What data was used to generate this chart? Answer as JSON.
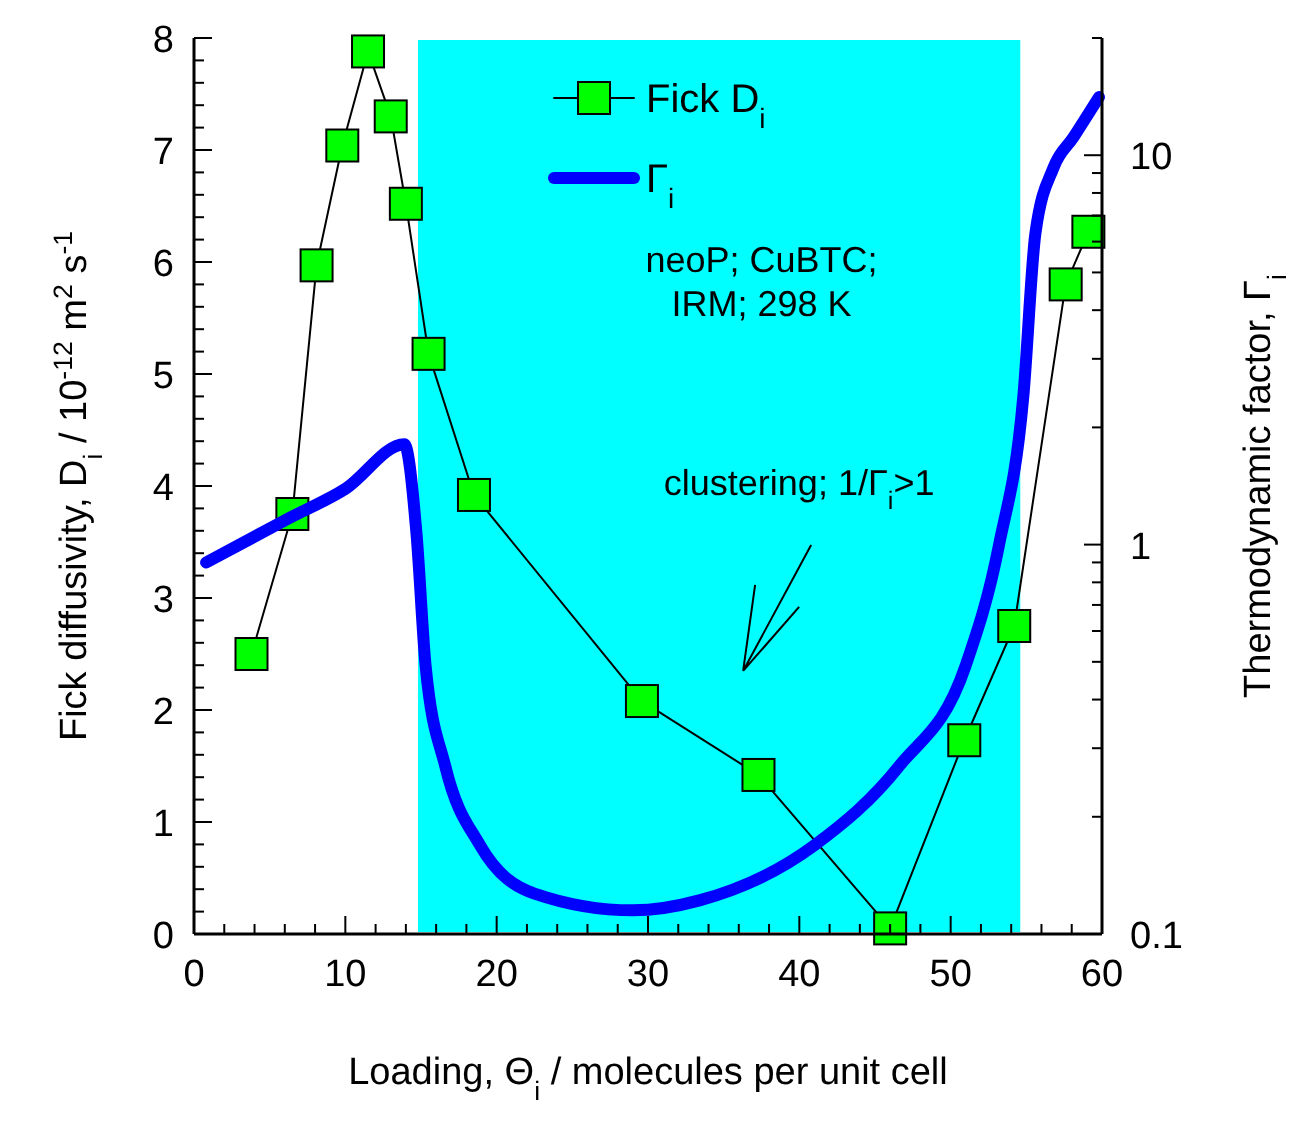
{
  "chart_data": {
    "type": "line",
    "xlabel": "Loading, Θ$_{i}$ / molecules per unit cell",
    "ylabel": "Fick diffusivity, D$_{i}$ / 10$^{-12}$ m$^{2}$ s$^{-1}$",
    "y2label": "Thermodynamic factor, Γ$_{i}$",
    "xlim": [
      0,
      60
    ],
    "xticks": [
      0,
      {
        "value": 2,
        "label": null
      },
      {
        "value": 4,
        "label": null
      },
      {
        "value": 6,
        "label": null
      },
      {
        "value": 8,
        "label": null
      },
      10,
      {
        "value": 12,
        "label": null
      },
      {
        "value": 14,
        "label": null
      },
      {
        "value": 16,
        "label": null
      },
      {
        "value": 18,
        "label": null
      },
      20,
      {
        "value": 22,
        "label": null
      },
      {
        "value": 24,
        "label": null
      },
      {
        "value": 26,
        "label": null
      },
      {
        "value": 28,
        "label": null
      },
      30,
      {
        "value": 32,
        "label": null
      },
      {
        "value": 34,
        "label": null
      },
      {
        "value": 36,
        "label": null
      },
      {
        "value": 38,
        "label": null
      },
      40,
      {
        "value": 42,
        "label": null
      },
      {
        "value": 44,
        "label": null
      },
      {
        "value": 46,
        "label": null
      },
      {
        "value": 48,
        "label": null
      },
      50,
      {
        "value": 52,
        "label": null
      },
      {
        "value": 54,
        "label": null
      },
      {
        "value": 56,
        "label": null
      },
      {
        "value": 58,
        "label": null
      },
      60
    ],
    "ylim": [
      0,
      8
    ],
    "yticks": [
      0,
      {
        "value": 0.2,
        "label": null
      },
      {
        "value": 0.4,
        "label": null
      },
      {
        "value": 0.6,
        "label": null
      },
      {
        "value": 0.8,
        "label": null
      },
      1,
      {
        "value": 1.2,
        "label": null
      },
      {
        "value": 1.4,
        "label": null
      },
      {
        "value": 1.6,
        "label": null
      },
      {
        "value": 1.8,
        "label": null
      },
      2,
      {
        "value": 2.2,
        "label": null
      },
      {
        "value": 2.4,
        "label": null
      },
      {
        "value": 2.6,
        "label": null
      },
      {
        "value": 2.8,
        "label": null
      },
      3,
      {
        "value": 3.2,
        "label": null
      },
      {
        "value": 3.4,
        "label": null
      },
      {
        "value": 3.6,
        "label": null
      },
      {
        "value": 3.8,
        "label": null
      },
      4,
      {
        "value": 4.2,
        "label": null
      },
      {
        "value": 4.4,
        "label": null
      },
      {
        "value": 4.6,
        "label": null
      },
      {
        "value": 4.8,
        "label": null
      },
      5,
      {
        "value": 5.2,
        "label": null
      },
      {
        "value": 5.4,
        "label": null
      },
      {
        "value": 5.6,
        "label": null
      },
      {
        "value": 5.8,
        "label": null
      },
      6,
      {
        "value": 6.2,
        "label": null
      },
      {
        "value": 6.4,
        "label": null
      },
      {
        "value": 6.6,
        "label": null
      },
      {
        "value": 6.8,
        "label": null
      },
      7,
      {
        "value": 7.2,
        "label": null
      },
      {
        "value": 7.4,
        "label": null
      },
      {
        "value": 7.6,
        "label": null
      },
      {
        "value": 7.8,
        "label": null
      },
      8
    ],
    "y2lim": [
      0.1,
      20
    ],
    "y2ticks": [
      0.1,
      {
        "value": 0.2,
        "label": null
      },
      {
        "value": 0.3,
        "label": null
      },
      {
        "value": 0.4,
        "label": null
      },
      {
        "value": 0.5,
        "label": null
      },
      {
        "value": 0.6,
        "label": null
      },
      {
        "value": 0.7,
        "label": null
      },
      {
        "value": 0.8,
        "label": null
      },
      {
        "value": 0.9,
        "label": null
      },
      1,
      {
        "value": 2,
        "label": null
      },
      {
        "value": 3,
        "label": null
      },
      {
        "value": 4,
        "label": null
      },
      {
        "value": 5,
        "label": null
      },
      {
        "value": 6,
        "label": null
      },
      {
        "value": 7,
        "label": null
      },
      {
        "value": 8,
        "label": null
      },
      {
        "value": 9,
        "label": null
      },
      10,
      {
        "value": 20,
        "label": null
      }
    ],
    "log": "y2",
    "grid": false,
    "legend": "top",
    "series": [
      {
        "name": "Fick D$_{i}$",
        "marker": "square",
        "color": "#00ff00",
        "x": [
          3.8,
          6.5,
          8.1,
          9.8,
          11.5,
          13,
          14,
          15.5,
          18.5,
          29.6,
          37.3,
          46,
          50.9,
          54.2,
          57.6,
          59.1
        ],
        "values": [
          2.5,
          3.75,
          5.97,
          7.04,
          7.88,
          7.3,
          6.52,
          5.18,
          3.92,
          2.08,
          1.42,
          0.05,
          1.73,
          2.75,
          5.8,
          6.27
        ]
      },
      {
        "name": "Γ$_{i}$",
        "marker": "none",
        "axis": "y2",
        "color": "#0000ff",
        "x": [
          0.8,
          6.3,
          10,
          13.9,
          14.7,
          15.3,
          16.6,
          18.9,
          22.5,
          29,
          33.4,
          41,
          46.6,
          51,
          53.2,
          54.8,
          55.6,
          56.8,
          58.1,
          59.8
        ],
        "values": [
          0.9,
          1.17,
          1.39,
          1.81,
          1.07,
          0.49,
          0.27,
          0.169,
          0.127,
          0.115,
          0.122,
          0.169,
          0.27,
          0.49,
          1,
          2.4,
          6.3,
          9.3,
          11.1,
          14.1
        ]
      }
    ],
    "bands": [
      {
        "axis": "x",
        "from": 14.8,
        "to": 54.6,
        "color": "#00ffff",
        "label": "clustering; 1/Γ$_{i}$>1"
      }
    ],
    "annotations": [
      "neoP; CuBTC;\nIRM; 298 K"
    ]
  }
}
